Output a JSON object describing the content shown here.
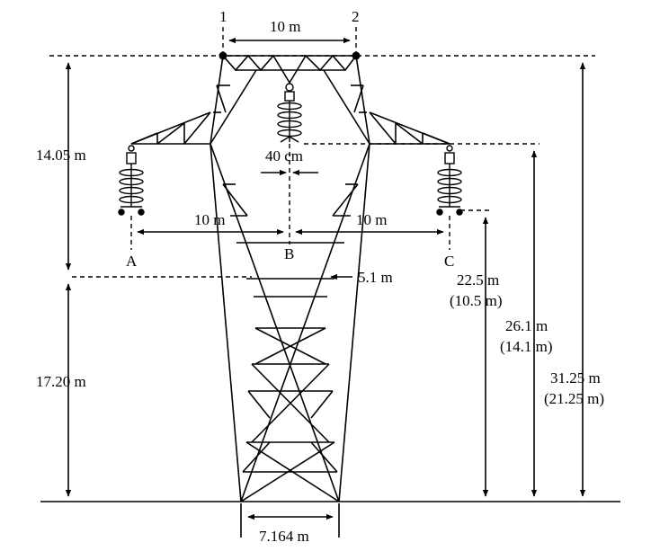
{
  "labels": {
    "conductor_1": "1",
    "conductor_2": "2",
    "shield_spacing": "10 m",
    "phase_a": "A",
    "phase_b": "B",
    "phase_c": "C",
    "spacing_ab": "10 m",
    "spacing_bc": "10 m",
    "insulator_offset": "40 cm",
    "upper_height": "14.05 m",
    "lower_height": "17.20 m",
    "waist_width": "5.1 m",
    "base_width": "7.164 m",
    "phase_height": "22.5 m",
    "phase_height_alt": "(10.5 m)",
    "crossarm_height": "26.1 m",
    "crossarm_height_alt": "(14.1 m)",
    "top_height": "31.25 m",
    "top_height_alt": "(21.25 m)"
  },
  "colors": {
    "line": "#000000",
    "background": "#ffffff"
  }
}
